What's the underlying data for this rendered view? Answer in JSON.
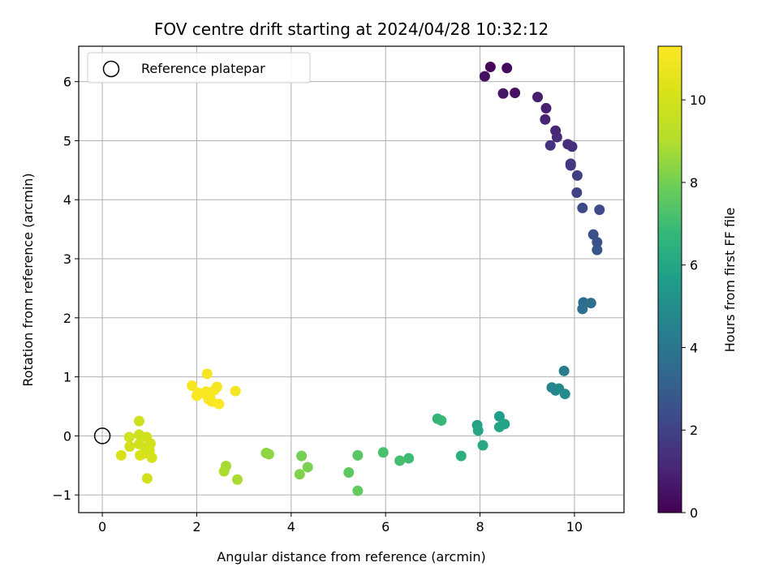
{
  "chart_data": {
    "type": "scatter",
    "title": "FOV centre drift starting at 2024/04/28 10:32:12",
    "xlabel": "Angular distance from reference (arcmin)",
    "ylabel": "Rotation from reference (arcmin)",
    "xlim": [
      -0.5,
      11.05
    ],
    "ylim": [
      -1.3,
      6.6
    ],
    "xticks": [
      0,
      2,
      4,
      6,
      8,
      10
    ],
    "yticks": [
      -1,
      0,
      1,
      2,
      3,
      4,
      5,
      6
    ],
    "grid": true,
    "legend": {
      "position": "top-left",
      "entries": [
        "Reference platepar"
      ]
    },
    "reference_point": {
      "x": 0,
      "y": 0
    },
    "colorbar": {
      "label": "Hours from first FF file",
      "colormap": "viridis",
      "range": [
        0,
        11.3
      ],
      "ticks": [
        0,
        2,
        4,
        6,
        8,
        10
      ]
    },
    "points": [
      {
        "x": 8.22,
        "y": 6.25,
        "h": 0.2
      },
      {
        "x": 8.57,
        "y": 6.23,
        "h": 0.3
      },
      {
        "x": 8.1,
        "y": 6.09,
        "h": 0.4
      },
      {
        "x": 8.74,
        "y": 5.81,
        "h": 0.5
      },
      {
        "x": 8.49,
        "y": 5.8,
        "h": 0.6
      },
      {
        "x": 9.22,
        "y": 5.74,
        "h": 0.8
      },
      {
        "x": 9.4,
        "y": 5.55,
        "h": 0.9
      },
      {
        "x": 9.38,
        "y": 5.36,
        "h": 1.0
      },
      {
        "x": 9.6,
        "y": 5.17,
        "h": 1.1
      },
      {
        "x": 9.63,
        "y": 5.06,
        "h": 1.2
      },
      {
        "x": 9.86,
        "y": 4.94,
        "h": 1.3
      },
      {
        "x": 9.95,
        "y": 4.9,
        "h": 1.4
      },
      {
        "x": 9.49,
        "y": 4.92,
        "h": 1.5
      },
      {
        "x": 9.92,
        "y": 4.61,
        "h": 1.6
      },
      {
        "x": 9.92,
        "y": 4.58,
        "h": 1.7
      },
      {
        "x": 10.06,
        "y": 4.41,
        "h": 1.9
      },
      {
        "x": 10.05,
        "y": 4.12,
        "h": 2.0
      },
      {
        "x": 10.17,
        "y": 3.86,
        "h": 2.2
      },
      {
        "x": 10.53,
        "y": 3.83,
        "h": 2.3
      },
      {
        "x": 10.4,
        "y": 3.41,
        "h": 2.5
      },
      {
        "x": 10.48,
        "y": 3.28,
        "h": 2.6
      },
      {
        "x": 10.48,
        "y": 3.15,
        "h": 2.7
      },
      {
        "x": 10.19,
        "y": 2.26,
        "h": 3.6
      },
      {
        "x": 10.35,
        "y": 2.25,
        "h": 3.7
      },
      {
        "x": 10.17,
        "y": 2.15,
        "h": 3.8
      },
      {
        "x": 9.78,
        "y": 1.1,
        "h": 4.3
      },
      {
        "x": 9.52,
        "y": 0.82,
        "h": 4.6
      },
      {
        "x": 9.6,
        "y": 0.77,
        "h": 4.7
      },
      {
        "x": 9.67,
        "y": 0.8,
        "h": 4.8
      },
      {
        "x": 9.8,
        "y": 0.71,
        "h": 4.9
      },
      {
        "x": 8.41,
        "y": 0.33,
        "h": 5.7
      },
      {
        "x": 7.94,
        "y": 0.18,
        "h": 5.8
      },
      {
        "x": 8.52,
        "y": 0.2,
        "h": 5.9
      },
      {
        "x": 8.41,
        "y": 0.15,
        "h": 5.95
      },
      {
        "x": 7.96,
        "y": 0.09,
        "h": 6.0
      },
      {
        "x": 8.06,
        "y": -0.16,
        "h": 6.1
      },
      {
        "x": 7.6,
        "y": -0.34,
        "h": 6.4
      },
      {
        "x": 7.1,
        "y": 0.29,
        "h": 6.7
      },
      {
        "x": 7.18,
        "y": 0.26,
        "h": 6.8
      },
      {
        "x": 6.49,
        "y": -0.38,
        "h": 7.0
      },
      {
        "x": 6.3,
        "y": -0.42,
        "h": 7.1
      },
      {
        "x": 5.95,
        "y": -0.28,
        "h": 7.2
      },
      {
        "x": 5.41,
        "y": -0.33,
        "h": 7.5
      },
      {
        "x": 5.22,
        "y": -0.62,
        "h": 7.6
      },
      {
        "x": 5.41,
        "y": -0.93,
        "h": 7.7
      },
      {
        "x": 4.22,
        "y": -0.34,
        "h": 8.0
      },
      {
        "x": 4.35,
        "y": -0.53,
        "h": 8.1
      },
      {
        "x": 4.18,
        "y": -0.65,
        "h": 8.2
      },
      {
        "x": 3.47,
        "y": -0.29,
        "h": 8.4
      },
      {
        "x": 3.53,
        "y": -0.31,
        "h": 8.45
      },
      {
        "x": 2.62,
        "y": -0.51,
        "h": 8.8
      },
      {
        "x": 2.58,
        "y": -0.6,
        "h": 8.9
      },
      {
        "x": 2.86,
        "y": -0.74,
        "h": 8.85
      },
      {
        "x": 0.78,
        "y": 0.25,
        "h": 9.8
      },
      {
        "x": 0.57,
        "y": -0.02,
        "h": 9.9
      },
      {
        "x": 0.78,
        "y": 0.02,
        "h": 9.85
      },
      {
        "x": 0.94,
        "y": -0.02,
        "h": 9.9
      },
      {
        "x": 1.02,
        "y": -0.13,
        "h": 10.0
      },
      {
        "x": 0.78,
        "y": -0.14,
        "h": 9.95
      },
      {
        "x": 0.58,
        "y": -0.18,
        "h": 10.0
      },
      {
        "x": 0.91,
        "y": -0.2,
        "h": 10.0
      },
      {
        "x": 1.0,
        "y": -0.25,
        "h": 10.1
      },
      {
        "x": 0.88,
        "y": -0.3,
        "h": 10.0
      },
      {
        "x": 0.8,
        "y": -0.33,
        "h": 10.1
      },
      {
        "x": 0.4,
        "y": -0.33,
        "h": 10.2
      },
      {
        "x": 1.05,
        "y": -0.37,
        "h": 10.1
      },
      {
        "x": 0.95,
        "y": -0.72,
        "h": 10.0
      },
      {
        "x": 2.22,
        "y": 1.05,
        "h": 11.0
      },
      {
        "x": 1.9,
        "y": 0.85,
        "h": 11.1
      },
      {
        "x": 2.43,
        "y": 0.83,
        "h": 11.1
      },
      {
        "x": 2.38,
        "y": 0.78,
        "h": 11.1
      },
      {
        "x": 2.82,
        "y": 0.76,
        "h": 11.0
      },
      {
        "x": 2.2,
        "y": 0.75,
        "h": 11.2
      },
      {
        "x": 2.03,
        "y": 0.73,
        "h": 11.2
      },
      {
        "x": 2.15,
        "y": 0.72,
        "h": 11.2
      },
      {
        "x": 2.0,
        "y": 0.68,
        "h": 11.2
      },
      {
        "x": 2.28,
        "y": 0.68,
        "h": 11.2
      },
      {
        "x": 2.25,
        "y": 0.62,
        "h": 11.2
      },
      {
        "x": 2.32,
        "y": 0.58,
        "h": 11.2
      },
      {
        "x": 2.47,
        "y": 0.54,
        "h": 11.3
      }
    ]
  }
}
